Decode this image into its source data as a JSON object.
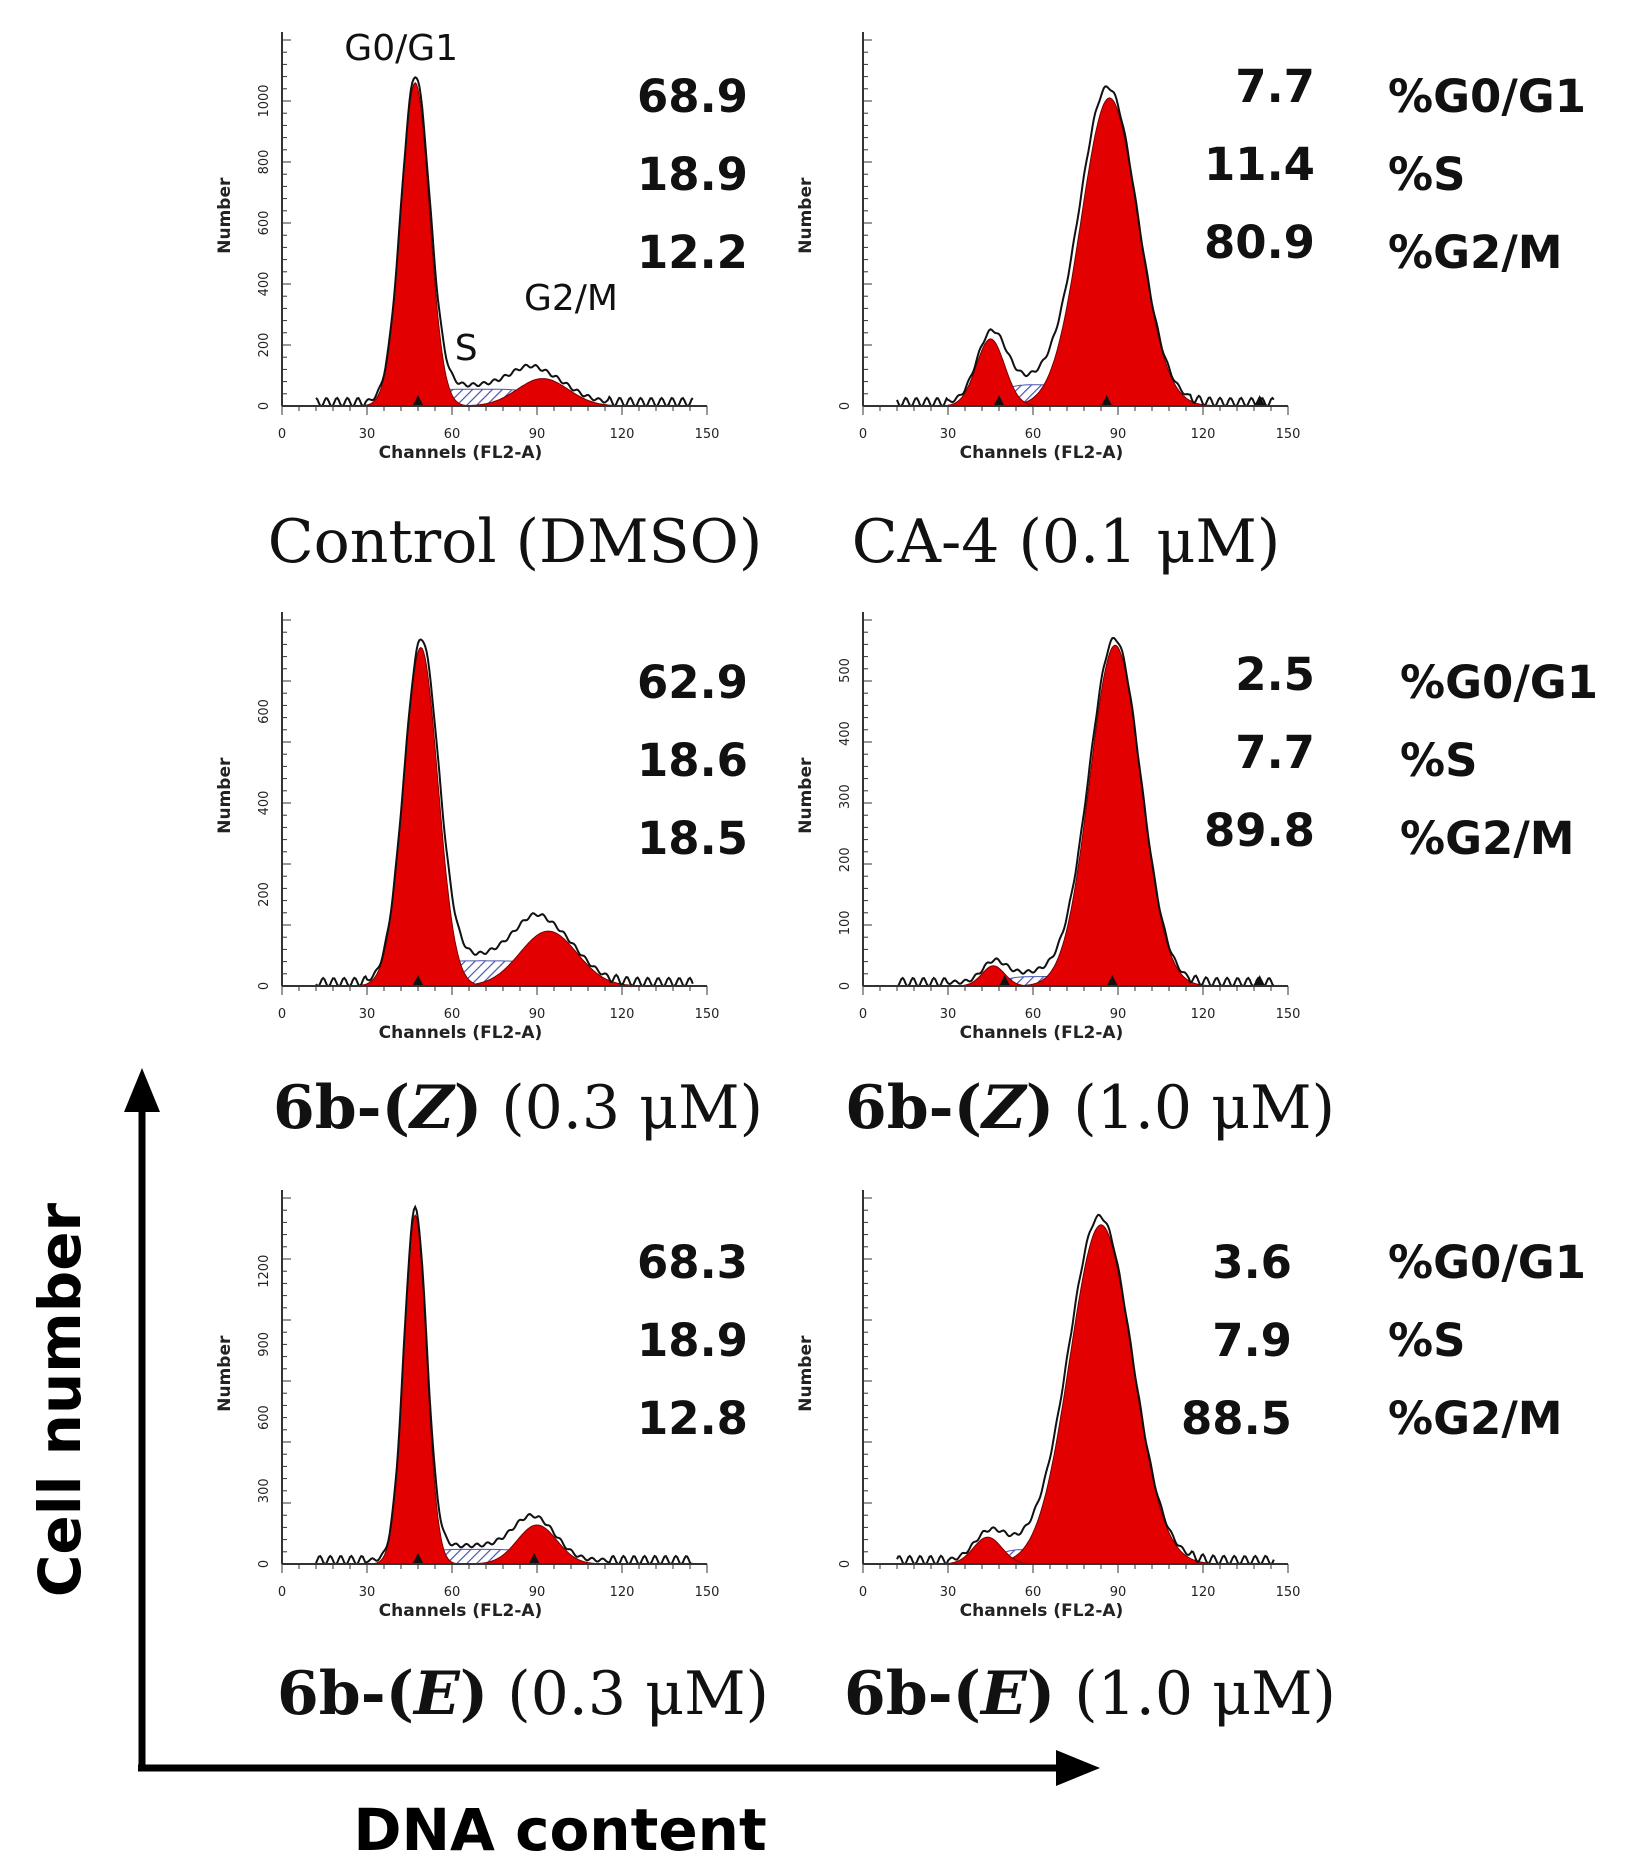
{
  "colors": {
    "g1": "#e30000",
    "g2": "#e30000",
    "s_hatch": "#4a55b0",
    "envelope": "#111111",
    "axis": "#333333"
  },
  "axis_arrows": {
    "y_label": "Cell number",
    "x_label": "DNA content"
  },
  "row_labels": {
    "g0g1": "%G0/G1",
    "s": "%S",
    "g2m": "%G2/M"
  },
  "chart_data": [
    {
      "type": "area",
      "panel": "Control",
      "xlabel": "Channels (FL2-A)",
      "ylabel": "Number",
      "xlim": [
        0,
        150
      ],
      "ylim": [
        0,
        1200
      ],
      "xticks": [
        0,
        30,
        60,
        90,
        120,
        150
      ],
      "yticks": [
        0,
        200,
        400,
        600,
        800,
        1000
      ],
      "peaks": {
        "g1": [
          47,
          5,
          1060
        ],
        "s_level": 55,
        "g2": [
          92,
          9,
          90
        ]
      },
      "markers": [
        48
      ],
      "annotations": {
        "g1": "G0/G1",
        "s": "S",
        "g2": "G2/M"
      },
      "percentages": [
        "68.9",
        "18.9",
        "12.2"
      ],
      "label": {
        "bold": "",
        "italic": "",
        "rest": "Control (DMSO)"
      }
    },
    {
      "type": "area",
      "panel": "CA-4",
      "xlabel": "Channels (FL2-A)",
      "ylabel": "Number",
      "xlim": [
        0,
        150
      ],
      "ylim": [
        0,
        1200
      ],
      "xticks": [
        0,
        30,
        60,
        90,
        120,
        150
      ],
      "yticks": [
        0
      ],
      "peaks": {
        "g1": [
          45,
          5,
          220
        ],
        "s_level": 70,
        "g2": [
          87,
          10,
          1010
        ]
      },
      "markers": [
        48,
        86,
        140
      ],
      "percentages": [
        "7.7",
        "11.4",
        "80.9"
      ],
      "label": {
        "bold": "",
        "italic": "",
        "rest": "CA-4 (0.1 μM)"
      }
    },
    {
      "type": "area",
      "panel": "6b-(Z) 0.3",
      "xlabel": "Channels (FL2-A)",
      "ylabel": "Number",
      "xlim": [
        0,
        150
      ],
      "ylim": [
        0,
        800
      ],
      "xticks": [
        0,
        30,
        60,
        90,
        120,
        150
      ],
      "yticks": [
        0,
        200,
        400,
        600
      ],
      "peaks": {
        "g1": [
          49,
          6,
          740
        ],
        "s_level": 55,
        "g2": [
          94,
          10,
          120
        ]
      },
      "markers": [
        48
      ],
      "percentages": [
        "62.9",
        "18.6",
        "18.5"
      ],
      "label": {
        "bold": "6b-(",
        "italic": "Z",
        "bold2": ")",
        "rest": " (0.3 μM)"
      }
    },
    {
      "type": "area",
      "panel": "6b-(Z) 1.0",
      "xlabel": "Channels (FL2-A)",
      "ylabel": "Number",
      "xlim": [
        0,
        150
      ],
      "ylim": [
        0,
        580
      ],
      "xticks": [
        0,
        30,
        60,
        90,
        120,
        150
      ],
      "yticks": [
        0,
        100,
        200,
        300,
        400,
        500
      ],
      "peaks": {
        "g1": [
          46,
          4,
          32
        ],
        "s_level": 15,
        "g2": [
          89,
          9,
          540
        ]
      },
      "markers": [
        50,
        88,
        140
      ],
      "percentages": [
        "2.5",
        "7.7",
        "89.8"
      ],
      "label": {
        "bold": "6b-(",
        "italic": "Z",
        "bold2": ")",
        "rest": " (1.0 μM)"
      }
    },
    {
      "type": "area",
      "panel": "6b-(E) 0.3",
      "xlabel": "Channels (FL2-A)",
      "ylabel": "Number",
      "xlim": [
        0,
        150
      ],
      "ylim": [
        0,
        1500
      ],
      "xticks": [
        0,
        30,
        60,
        90,
        120,
        150
      ],
      "yticks": [
        0,
        300,
        600,
        900,
        1200
      ],
      "peaks": {
        "g1": [
          47,
          4,
          1430
        ],
        "s_level": 60,
        "g2": [
          90,
          7,
          160
        ]
      },
      "markers": [
        48,
        89
      ],
      "percentages": [
        "68.3",
        "18.9",
        "12.8"
      ],
      "label": {
        "bold": "6b-(",
        "italic": "E",
        "bold2": ")",
        "rest": " (0.3 μM)"
      }
    },
    {
      "type": "area",
      "panel": "6b-(E) 1.0",
      "xlabel": "Channels (FL2-A)",
      "ylabel": "Number",
      "xlim": [
        0,
        150
      ],
      "ylim": [
        0,
        1500
      ],
      "xticks": [
        0,
        30,
        60,
        90,
        120,
        150
      ],
      "yticks": [
        0
      ],
      "peaks": {
        "g1": [
          44,
          5,
          110
        ],
        "s_level": 60,
        "g2": [
          84,
          11,
          1390
        ]
      },
      "markers": [],
      "percentages": [
        "3.6",
        "7.9",
        "88.5"
      ],
      "label": {
        "bold": "6b-(",
        "italic": "E",
        "bold2": ")",
        "rest": " (1.0 μM)"
      }
    }
  ]
}
